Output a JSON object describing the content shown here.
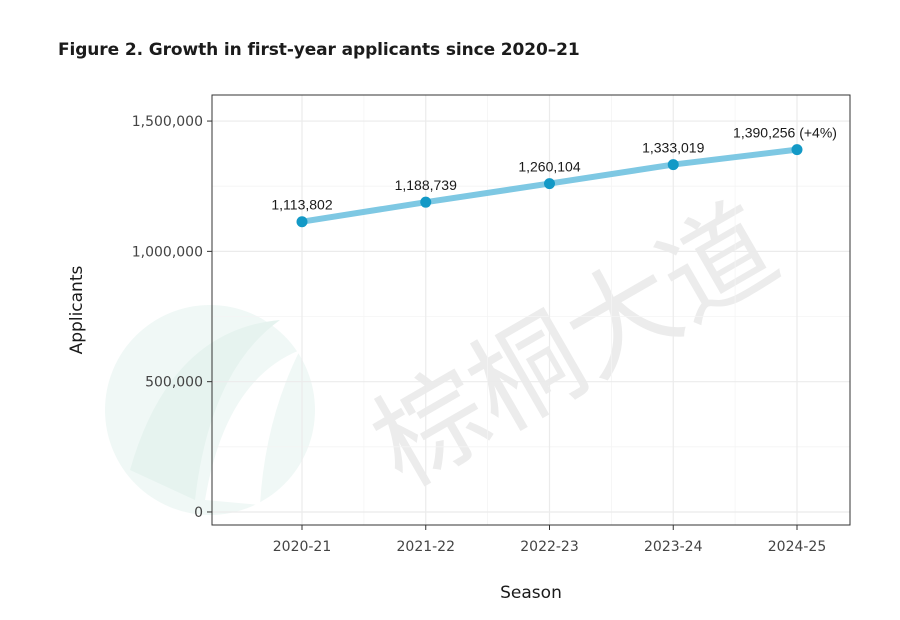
{
  "figure": {
    "title": "Figure 2. Growth in first-year applicants since 2020–21",
    "watermark_text": "棕桐大道"
  },
  "chart_data": {
    "type": "line",
    "title": "Figure 2. Growth in first-year applicants since 2020–21",
    "xlabel": "Season",
    "ylabel": "Applicants",
    "categories": [
      "2020-21",
      "2021-22",
      "2022-23",
      "2023-24",
      "2024-25"
    ],
    "series": [
      {
        "values": [
          1113802,
          1188739,
          1260104,
          1333019,
          1390256
        ],
        "data_labels": [
          "1,113,802",
          "1,188,739",
          "1,260,104",
          "1,333,019",
          "1,390,256 (+4%)"
        ]
      }
    ],
    "yticks": [
      0,
      500000,
      1000000,
      1500000
    ],
    "ytick_labels": [
      "0",
      "500,000",
      "1,000,000",
      "1,500,000"
    ],
    "ylim": [
      -50000,
      1600000
    ],
    "grid": true,
    "colors": {
      "line": "#7ec8e3",
      "point": "#1399c6",
      "grid": "#ebebeb",
      "panel_border": "#333333"
    }
  }
}
